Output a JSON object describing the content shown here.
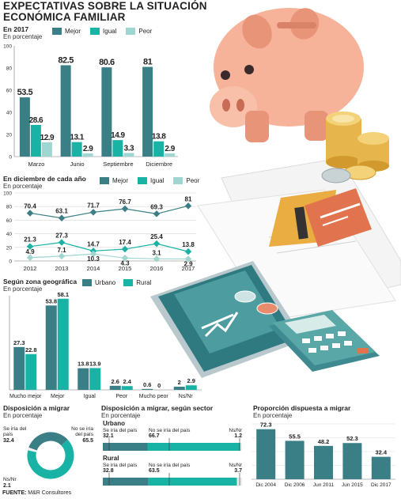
{
  "title": "EXPECTATIVAS SOBRE LA SITUACIÓN ECONÓMICA FAMILIAR",
  "colors": {
    "mejor": "#3a7f86",
    "igual": "#18b3a4",
    "peor": "#9fd6d2",
    "urbano": "#3a7f86",
    "rural": "#18b3a4",
    "track": "#e8ecec"
  },
  "source_label": "FUENTE:",
  "source_text": "M&R Consultores",
  "chart_data": [
    {
      "type": "bar",
      "heading": "En 2017",
      "subheading": "En porcentaje",
      "legend": [
        "Mejor",
        "Igual",
        "Peor"
      ],
      "categories": [
        "Marzo",
        "Junio",
        "Septiembre",
        "Diciembre"
      ],
      "series": [
        {
          "name": "Mejor",
          "values": [
            53.5,
            82.5,
            80.6,
            81
          ]
        },
        {
          "name": "Igual",
          "values": [
            28.6,
            13.1,
            14.9,
            13.8
          ]
        },
        {
          "name": "Peor",
          "values": [
            12.9,
            2.9,
            3.3,
            2.9
          ]
        }
      ],
      "ylim": [
        0,
        100
      ],
      "yticks": [
        "0",
        "20",
        "40",
        "60",
        "80",
        "100"
      ],
      "grid": false
    },
    {
      "type": "line",
      "heading": "En diciembre de cada año",
      "subheading": "En porcentaje",
      "legend": [
        "Mejor",
        "Igual",
        "Peor"
      ],
      "x": [
        "2012",
        "2013",
        "2014",
        "2015",
        "2016",
        "2017"
      ],
      "series": [
        {
          "name": "Mejor",
          "values": [
            70.4,
            63.1,
            71.7,
            76.7,
            69.3,
            81
          ]
        },
        {
          "name": "Igual",
          "values": [
            21.3,
            27.3,
            14.7,
            17.4,
            25.4,
            13.8
          ]
        },
        {
          "name": "Peor",
          "values": [
            4.9,
            7.1,
            10.3,
            4.3,
            3.1,
            2.9
          ]
        }
      ],
      "ylim": [
        0,
        100
      ],
      "yticks": [
        "0",
        "20",
        "40",
        "60",
        "80",
        "100"
      ],
      "grid": true
    },
    {
      "type": "bar",
      "heading": "Según zona geográfica",
      "subheading": "En porcentaje",
      "legend": [
        "Urbano",
        "Rural"
      ],
      "categories": [
        "Mucho mejor",
        "Mejor",
        "Igual",
        "Peor",
        "Mucho peor",
        "Ns/Nr"
      ],
      "series": [
        {
          "name": "Urbano",
          "values": [
            27.3,
            53.8,
            13.8,
            2.6,
            0.6,
            2
          ]
        },
        {
          "name": "Rural",
          "values": [
            22.8,
            58.1,
            13.9,
            2.4,
            0,
            2.9
          ]
        }
      ],
      "ylim": [
        0,
        60
      ],
      "grid": false
    },
    {
      "type": "pie",
      "heading": "Disposición a migrar",
      "subheading": "En porcentaje",
      "slices": [
        {
          "label": "Se iría del país",
          "value": 32.4
        },
        {
          "label": "No se iría del país",
          "value": 65.5
        },
        {
          "label": "Ns/Nr",
          "value": 2.1
        }
      ]
    },
    {
      "type": "bar",
      "heading": "Disposición a migrar, según sector",
      "subheading": "En porcentaje",
      "groups": [
        {
          "name": "Urbano",
          "labels": [
            "Se iría del país",
            "No se iría del país",
            "Ns/Nr"
          ],
          "values": [
            32.1,
            66.7,
            1.2
          ]
        },
        {
          "name": "Rural",
          "labels": [
            "Se iría del país",
            "No se iría del país",
            "Ns/Nr"
          ],
          "values": [
            32.8,
            63.5,
            3.7
          ]
        }
      ]
    },
    {
      "type": "bar",
      "heading": "Proporción dispuesta a migrar",
      "subheading": "En porcentaje",
      "categories": [
        "Dic 2004",
        "Dic 2006",
        "Jun 2011",
        "Jun 2015",
        "Dic 2017"
      ],
      "values": [
        72.3,
        55.5,
        48.2,
        52.3,
        32.4
      ],
      "ylim": [
        0,
        80
      ],
      "grid": true
    }
  ]
}
